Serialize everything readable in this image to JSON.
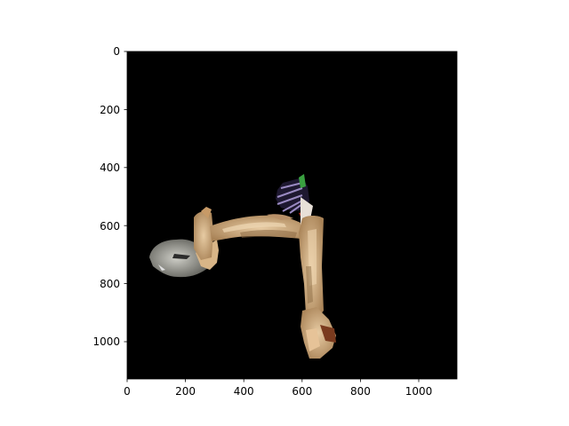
{
  "chart_data": {
    "type": "image",
    "title": "",
    "xlabel": "",
    "ylabel": "",
    "xlim": [
      0,
      1130
    ],
    "ylim": [
      1130,
      0
    ],
    "x_ticks": [
      0,
      200,
      400,
      600,
      800,
      1000
    ],
    "y_ticks": [
      0,
      200,
      400,
      600,
      800,
      1000
    ],
    "x_tick_labels": [
      "0",
      "200",
      "400",
      "600",
      "800",
      "1000"
    ],
    "y_tick_labels": [
      "0",
      "200",
      "400",
      "600",
      "800",
      "1000"
    ],
    "background_color": "#000000",
    "grid": false
  },
  "image": {
    "description_colors": {
      "path_tan": "#c9a47a",
      "path_light": "#e3c7a0",
      "path_dark": "#8a6a45",
      "gray_blob": "#8c8c84",
      "purple_fan": "#6a5a8a",
      "red_accent": "#b03a2e",
      "green_accent": "#3aa040"
    }
  }
}
